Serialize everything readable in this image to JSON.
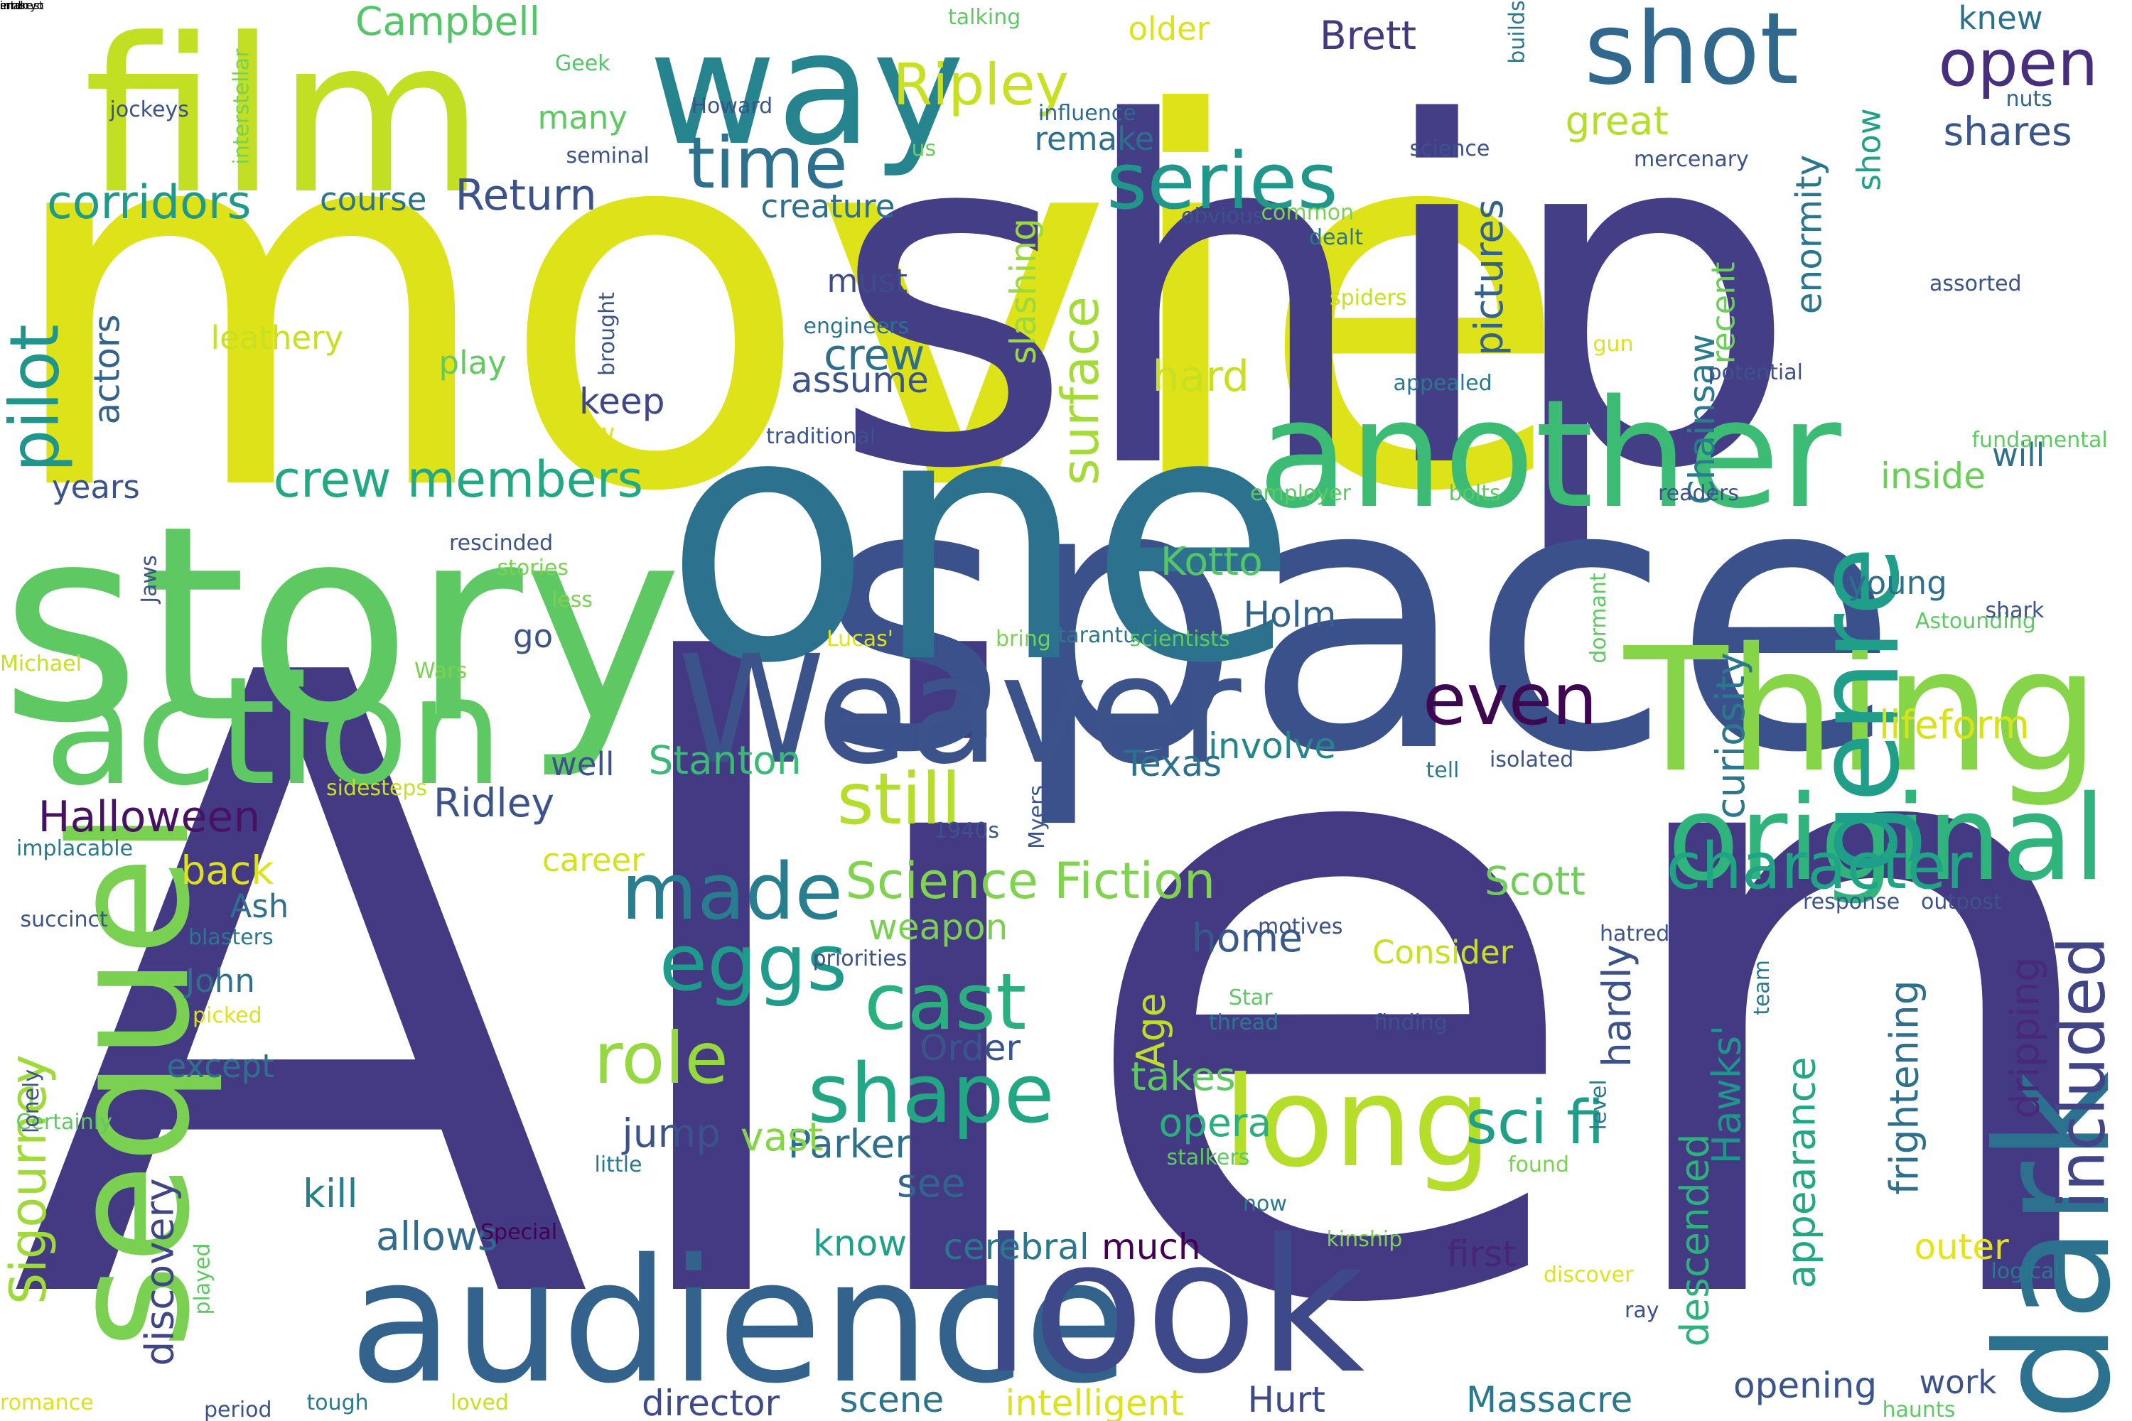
{
  "words": [
    {
      "text": "Alien",
      "weight": 100,
      "color": "#443983"
    },
    {
      "text": "movie",
      "weight": 56,
      "color": "#dde318"
    },
    {
      "text": "ship",
      "weight": 55,
      "color": "#433e85"
    },
    {
      "text": "space",
      "weight": 45,
      "color": "#3b518b"
    },
    {
      "text": "one",
      "weight": 45,
      "color": "#2c728e"
    },
    {
      "text": "story",
      "weight": 40,
      "color": "#5ec962"
    },
    {
      "text": "film",
      "weight": 35,
      "color": "#c2df23"
    },
    {
      "text": "audience",
      "weight": 30,
      "color": "#33638d"
    },
    {
      "text": "look",
      "weight": 28,
      "color": "#3e4989"
    },
    {
      "text": "another",
      "weight": 25,
      "color": "#3cbb75"
    },
    {
      "text": "Thing",
      "weight": 25,
      "color": "#86d549"
    },
    {
      "text": "sequel",
      "weight": 22,
      "color": "#7ad151"
    },
    {
      "text": "Weaver",
      "weight": 22,
      "color": "#3b528b"
    },
    {
      "text": "action",
      "weight": 22,
      "color": "#5ec962"
    },
    {
      "text": "way",
      "weight": 20,
      "color": "#25848e"
    },
    {
      "text": "dark",
      "weight": 20,
      "color": "#2c728e"
    },
    {
      "text": "long",
      "weight": 16,
      "color": "#b5de2b"
    },
    {
      "text": "original",
      "weight": 16,
      "color": "#2fb47c"
    },
    {
      "text": "genre",
      "weight": 15,
      "color": "#1f9e89"
    },
    {
      "text": "shot",
      "weight": 13,
      "color": "#31688e"
    },
    {
      "text": "character",
      "weight": 12,
      "color": "#20a486"
    },
    {
      "text": "series",
      "weight": 11,
      "color": "#1f988b"
    },
    {
      "text": "open",
      "weight": 11,
      "color": "#472f7d"
    },
    {
      "text": "even",
      "weight": 11,
      "color": "#3e0751"
    },
    {
      "text": "still",
      "weight": 11,
      "color": "#b5de2b"
    },
    {
      "text": "included",
      "weight": 11,
      "color": "#414487"
    },
    {
      "text": "made",
      "weight": 11,
      "color": "#287d8e"
    },
    {
      "text": "eggs",
      "weight": 11,
      "color": "#1e9b8a"
    },
    {
      "text": "shape",
      "weight": 11,
      "color": "#22a785"
    },
    {
      "text": "cast",
      "weight": 11,
      "color": "#2ab07f"
    },
    {
      "text": "role",
      "weight": 11,
      "color": "#95d840"
    },
    {
      "text": "time",
      "weight": 10,
      "color": "#2d718e"
    },
    {
      "text": "Ripley",
      "weight": 10,
      "color": "#c8e020"
    },
    {
      "text": "pilot",
      "weight": 10,
      "color": "#1f958b"
    },
    {
      "text": "crew members",
      "weight": 9,
      "color": "#22a884"
    },
    {
      "text": "Science Fiction",
      "weight": 9,
      "color": "#7fd34e"
    },
    {
      "text": "sci fi",
      "weight": 9,
      "color": "#1f9f88"
    },
    {
      "text": "corridors",
      "weight": 8,
      "color": "#1f9a8a"
    },
    {
      "text": "Sigourney",
      "weight": 8,
      "color": "#a0da39"
    },
    {
      "text": "surface",
      "weight": 8,
      "color": "#a5db36"
    },
    {
      "text": "Halloween",
      "weight": 8,
      "color": "#471164"
    },
    {
      "text": "Return",
      "weight": 8,
      "color": "#3b528b"
    },
    {
      "text": "hard",
      "weight": 8,
      "color": "#c8e020"
    },
    {
      "text": "crew",
      "weight": 8,
      "color": "#2e6e8e"
    },
    {
      "text": "Campbell",
      "weight": 7,
      "color": "#54c568"
    },
    {
      "text": "discovery",
      "weight": 7,
      "color": "#404588"
    },
    {
      "text": "Hawks'",
      "weight": 7,
      "color": "#1f958b"
    },
    {
      "text": "appearance",
      "weight": 7,
      "color": "#22a884"
    },
    {
      "text": "descended",
      "weight": 7,
      "color": "#2db27d"
    },
    {
      "text": "actors",
      "weight": 7,
      "color": "#33638d"
    },
    {
      "text": "Chainsaw",
      "weight": 7,
      "color": "#287c8e"
    },
    {
      "text": "Massacre",
      "weight": 7,
      "color": "#2a788e"
    },
    {
      "text": "opening",
      "weight": 7,
      "color": "#3a548c"
    },
    {
      "text": "director",
      "weight": 7,
      "color": "#3e4a89"
    },
    {
      "text": "enormity",
      "weight": 7,
      "color": "#2a768e"
    },
    {
      "text": "inside",
      "weight": 7,
      "color": "#6ccd5a"
    },
    {
      "text": "shares",
      "weight": 7,
      "color": "#39568c"
    },
    {
      "text": "Brett",
      "weight": 7,
      "color": "#453781"
    },
    {
      "text": "pictures",
      "weight": 7,
      "color": "#33638d"
    },
    {
      "text": "lifeform",
      "weight": 7,
      "color": "#d8e219"
    },
    {
      "text": "Parker",
      "weight": 7,
      "color": "#2e6f8e"
    },
    {
      "text": "Scott",
      "weight": 7,
      "color": "#6ece58"
    },
    {
      "text": "opera",
      "weight": 7,
      "color": "#2ab07f"
    },
    {
      "text": "Stanton",
      "weight": 7,
      "color": "#3aba76"
    },
    {
      "text": "Kotto",
      "weight": 7,
      "color": "#54c568"
    },
    {
      "text": "Ridley",
      "weight": 7,
      "color": "#3b528b"
    },
    {
      "text": "allows",
      "weight": 7,
      "color": "#2f6c8e"
    },
    {
      "text": "kill",
      "weight": 7,
      "color": "#277f8e"
    },
    {
      "text": "Age",
      "weight": 7,
      "color": "#bddf26"
    },
    {
      "text": "back",
      "weight": 7,
      "color": "#dde318"
    },
    {
      "text": "home",
      "weight": 7,
      "color": "#38598c"
    },
    {
      "text": "see",
      "weight": 7,
      "color": "#32658e"
    },
    {
      "text": "vast",
      "weight": 7,
      "color": "#86d549"
    },
    {
      "text": "jump",
      "weight": 7,
      "color": "#3b528b"
    },
    {
      "text": "great",
      "weight": 7,
      "color": "#b5de2b"
    },
    {
      "text": "curiosity",
      "weight": 7,
      "color": "#2a788e"
    },
    {
      "text": "frightening",
      "weight": 7,
      "color": "#2d708e"
    },
    {
      "text": "dripping",
      "weight": 7,
      "color": "#482878"
    },
    {
      "text": "hardly",
      "weight": 7,
      "color": "#3b528b"
    },
    {
      "text": "takes",
      "weight": 7,
      "color": "#5ec962"
    },
    {
      "text": "Holm",
      "weight": 6,
      "color": "#33638d"
    },
    {
      "text": "outer",
      "weight": 6,
      "color": "#e5e419"
    },
    {
      "text": "first",
      "weight": 6,
      "color": "#482576"
    },
    {
      "text": "Order",
      "weight": 6,
      "color": "#39568c"
    },
    {
      "text": "weapon",
      "weight": 6,
      "color": "#7ad151"
    },
    {
      "text": "keep",
      "weight": 6,
      "color": "#3f4788"
    },
    {
      "text": "involve",
      "weight": 6,
      "color": "#25858e"
    },
    {
      "text": "assume",
      "weight": 6,
      "color": "#3b528b"
    },
    {
      "text": "slashing",
      "weight": 6,
      "color": "#9bd93c"
    },
    {
      "text": "Texas",
      "weight": 6,
      "color": "#2c728e"
    },
    {
      "text": "cerebral",
      "weight": 6,
      "color": "#2a778e"
    },
    {
      "text": "much",
      "weight": 6,
      "color": "#440154"
    },
    {
      "text": "know",
      "weight": 6,
      "color": "#1fa088"
    },
    {
      "text": "scene",
      "weight": 6,
      "color": "#2c738e"
    },
    {
      "text": "Hurt",
      "weight": 6,
      "color": "#3e4989"
    },
    {
      "text": "intelligent",
      "weight": 6,
      "color": "#dde318"
    },
    {
      "text": "John",
      "weight": 6,
      "color": "#2d718e"
    },
    {
      "text": "career",
      "weight": 6,
      "color": "#d5e21a"
    },
    {
      "text": "creature",
      "weight": 6,
      "color": "#2d708e"
    },
    {
      "text": "course",
      "weight": 6,
      "color": "#2c738e"
    },
    {
      "text": "older",
      "weight": 6,
      "color": "#dde318"
    },
    {
      "text": "many",
      "weight": 6,
      "color": "#5ec962"
    },
    {
      "text": "remake",
      "weight": 6,
      "color": "#2d708e"
    },
    {
      "text": "must",
      "weight": 6,
      "color": "#3e4a89"
    },
    {
      "text": "play",
      "weight": 6,
      "color": "#62cb5f"
    },
    {
      "text": "go",
      "weight": 6,
      "color": "#3b528b"
    },
    {
      "text": "well",
      "weight": 6,
      "color": "#3b528b"
    },
    {
      "text": "young",
      "weight": 6,
      "color": "#2d708e"
    },
    {
      "text": "will",
      "weight": 6,
      "color": "#2d708e"
    },
    {
      "text": "recent",
      "weight": 6,
      "color": "#6ccd5a"
    },
    {
      "text": "show",
      "weight": 6,
      "color": "#1fa188"
    },
    {
      "text": "knew",
      "weight": 6,
      "color": "#2d708e"
    },
    {
      "text": "Consider",
      "weight": 6,
      "color": "#c8e020"
    },
    {
      "text": "Ash",
      "weight": 6,
      "color": "#2e6f8e"
    },
    {
      "text": "except",
      "weight": 6,
      "color": "#2d718e"
    },
    {
      "text": "work",
      "weight": 6,
      "color": "#3b528b"
    },
    {
      "text": "years",
      "weight": 6,
      "color": "#3b528b"
    },
    {
      "text": "leathery",
      "weight": 6,
      "color": "#c8e020"
    },
    {
      "text": "us",
      "weight": 6,
      "color": "#6ccd5a"
    },
    {
      "text": "Geek",
      "weight": 4,
      "color": "#54c568"
    },
    {
      "text": "Howard",
      "weight": 4,
      "color": "#3b528b"
    },
    {
      "text": "talking",
      "weight": 4,
      "color": "#5ec962"
    },
    {
      "text": "builds",
      "weight": 4,
      "color": "#2a788e"
    },
    {
      "text": "nuts",
      "weight": 4,
      "color": "#31688e"
    },
    {
      "text": "influence",
      "weight": 4,
      "color": "#31688e"
    },
    {
      "text": "science",
      "weight": 4,
      "color": "#3b528b"
    },
    {
      "text": "mercenary",
      "weight": 4,
      "color": "#3b528b"
    },
    {
      "text": "seminal",
      "weight": 4,
      "color": "#3b528b"
    },
    {
      "text": "obvious",
      "weight": 4,
      "color": "#3b528b"
    },
    {
      "text": "common",
      "weight": 4,
      "color": "#7ad151"
    },
    {
      "text": "jockeys",
      "weight": 4,
      "color": "#3b528b"
    },
    {
      "text": "interstellar",
      "weight": 4,
      "color": "#7ad151"
    },
    {
      "text": "dealt",
      "weight": 4,
      "color": "#2a788e"
    },
    {
      "text": "spiders",
      "weight": 4,
      "color": "#c8e020"
    },
    {
      "text": "assorted",
      "weight": 4,
      "color": "#3b528b"
    },
    {
      "text": "Golden",
      "weight": 4,
      "color": "#dde318"
    },
    {
      "text": "engineers",
      "weight": 4,
      "color": "#2d708e"
    },
    {
      "text": "brought",
      "weight": 4,
      "color": "#3b528b"
    },
    {
      "text": "gun",
      "weight": 4,
      "color": "#dde318"
    },
    {
      "text": "appealed",
      "weight": 4,
      "color": "#2a788e"
    },
    {
      "text": "potential",
      "weight": 4,
      "color": "#3b528b"
    },
    {
      "text": "W",
      "weight": 4,
      "color": "#dde318"
    },
    {
      "text": "traditional",
      "weight": 4,
      "color": "#3b528b"
    },
    {
      "text": "fundamental",
      "weight": 4,
      "color": "#5ec962"
    },
    {
      "text": "employer",
      "weight": 4,
      "color": "#5ec962"
    },
    {
      "text": "bolts",
      "weight": 4,
      "color": "#5ec962"
    },
    {
      "text": "readers",
      "weight": 4,
      "color": "#3b528b"
    },
    {
      "text": "rescinded",
      "weight": 4,
      "color": "#3b528b"
    },
    {
      "text": "stories",
      "weight": 4,
      "color": "#7ad151"
    },
    {
      "text": "Jaws",
      "weight": 4,
      "color": "#3b528b"
    },
    {
      "text": "less",
      "weight": 4,
      "color": "#7ad151"
    },
    {
      "text": "dormant",
      "weight": 4,
      "color": "#5ec962"
    },
    {
      "text": "Astounding",
      "weight": 4,
      "color": "#5ec962"
    },
    {
      "text": "shark",
      "weight": 4,
      "color": "#3b528b"
    },
    {
      "text": "Michael",
      "weight": 4,
      "color": "#c8e020"
    },
    {
      "text": "Wars",
      "weight": 4,
      "color": "#7ad151"
    },
    {
      "text": "Lucas'",
      "weight": 4,
      "color": "#dde318"
    },
    {
      "text": "bring",
      "weight": 4,
      "color": "#7ad151"
    },
    {
      "text": "tarantulas",
      "weight": 4,
      "color": "#2a788e"
    },
    {
      "text": "scientists",
      "weight": 4,
      "color": "#5ec962"
    },
    {
      "text": "sidesteps",
      "weight": 4,
      "color": "#c8e020"
    },
    {
      "text": "tell",
      "weight": 4,
      "color": "#2a788e"
    },
    {
      "text": "isolated",
      "weight": 4,
      "color": "#3b528b"
    },
    {
      "text": "implacable",
      "weight": 4,
      "color": "#2a788e"
    },
    {
      "text": "Myers",
      "weight": 4,
      "color": "#3b528b"
    },
    {
      "text": "1940s",
      "weight": 4,
      "color": "#3b528b"
    },
    {
      "text": "response",
      "weight": 4,
      "color": "#3b528b"
    },
    {
      "text": "outpost",
      "weight": 4,
      "color": "#3b528b"
    },
    {
      "text": "succinct",
      "weight": 4,
      "color": "#3b528b"
    },
    {
      "text": "blasters",
      "weight": 4,
      "color": "#2a788e"
    },
    {
      "text": "hatred",
      "weight": 4,
      "color": "#3b528b"
    },
    {
      "text": "motives",
      "weight": 4,
      "color": "#3b528b"
    },
    {
      "text": "priorities",
      "weight": 4,
      "color": "#3b528b"
    },
    {
      "text": "Star",
      "weight": 4,
      "color": "#5ec962"
    },
    {
      "text": "team",
      "weight": 4,
      "color": "#2a788e"
    },
    {
      "text": "picked",
      "weight": 4,
      "color": "#dde318"
    },
    {
      "text": "thread",
      "weight": 4,
      "color": "#2a788e"
    },
    {
      "text": "finding",
      "weight": 4,
      "color": "#3b528b"
    },
    {
      "text": "Certainly",
      "weight": 4,
      "color": "#5ec962"
    },
    {
      "text": "lonely",
      "weight": 4,
      "color": "#3b528b"
    },
    {
      "text": "little",
      "weight": 4,
      "color": "#2a788e"
    },
    {
      "text": "found",
      "weight": 4,
      "color": "#7ad151"
    },
    {
      "text": "stalkers",
      "weight": 4,
      "color": "#5ec962"
    },
    {
      "text": "now",
      "weight": 4,
      "color": "#2a788e"
    },
    {
      "text": "level",
      "weight": 4,
      "color": "#2a788e"
    },
    {
      "text": "Special",
      "weight": 4,
      "color": "#440154"
    },
    {
      "text": "kinship",
      "weight": 4,
      "color": "#7ad151"
    },
    {
      "text": "discover",
      "weight": 4,
      "color": "#dde318"
    },
    {
      "text": "logical",
      "weight": 4,
      "color": "#2a788e"
    },
    {
      "text": "played",
      "weight": 4,
      "color": "#5ec962"
    },
    {
      "text": "ray",
      "weight": 4,
      "color": "#3b528b"
    },
    {
      "text": "romance",
      "weight": 4,
      "color": "#dde318"
    },
    {
      "text": "period",
      "weight": 4,
      "color": "#3b528b"
    },
    {
      "text": "tough",
      "weight": 4,
      "color": "#2a788e"
    },
    {
      "text": "loved",
      "weight": 4,
      "color": "#c8e020"
    },
    {
      "text": "haunts",
      "weight": 4,
      "color": "#5ec962"
    },
    {
      "text": "interest",
      "weight": 4,
      "color": "#3b528b"
    },
    {
      "text": "embryo",
      "weight": 4,
      "color": "#2a788e"
    },
    {
      "text": "snakes",
      "weight": 4,
      "color": "#3b528b"
    }
  ]
}
